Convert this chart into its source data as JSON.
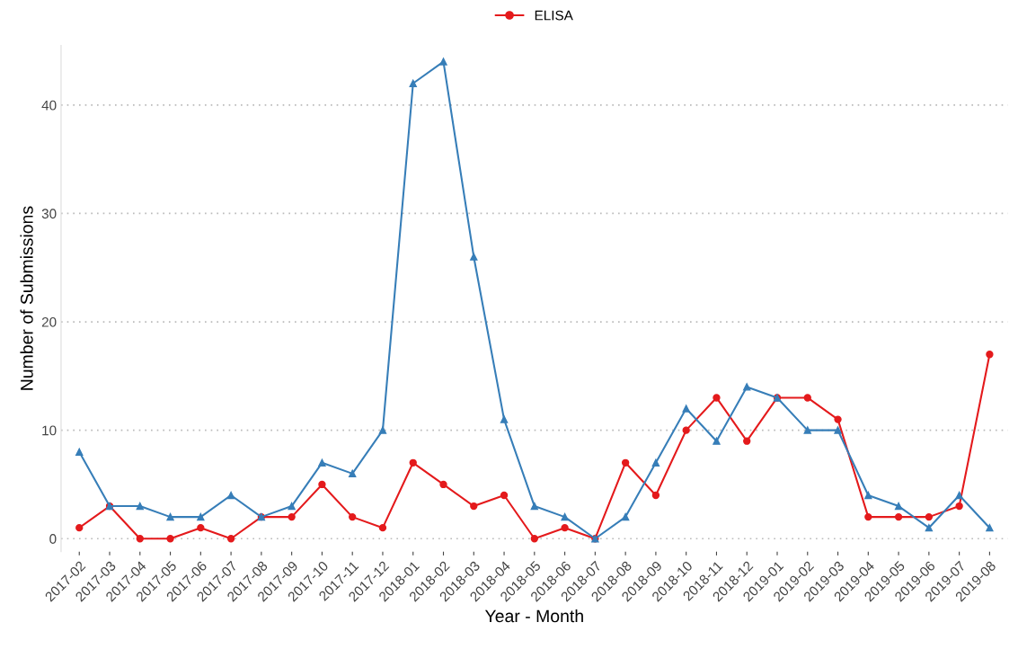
{
  "chart_data": {
    "type": "line",
    "xlabel": "Year - Month",
    "ylabel": "Number of Submissions",
    "categories": [
      "2017-02",
      "2017-03",
      "2017-04",
      "2017-05",
      "2017-06",
      "2017-07",
      "2017-08",
      "2017-09",
      "2017-10",
      "2017-11",
      "2017-12",
      "2018-01",
      "2018-02",
      "2018-03",
      "2018-04",
      "2018-05",
      "2018-06",
      "2018-07",
      "2018-08",
      "2018-09",
      "2018-10",
      "2018-11",
      "2018-12",
      "2019-01",
      "2019-02",
      "2019-03",
      "2019-04",
      "2019-05",
      "2019-06",
      "2019-07",
      "2019-08"
    ],
    "series": [
      {
        "name": "ELISA",
        "color": "#e41a1c",
        "marker": "circle",
        "values": [
          1,
          3,
          0,
          0,
          1,
          0,
          2,
          2,
          5,
          2,
          1,
          7,
          5,
          3,
          4,
          0,
          1,
          0,
          7,
          4,
          10,
          13,
          9,
          13,
          13,
          11,
          2,
          2,
          2,
          3,
          17
        ]
      },
      {
        "color": "#377eb8",
        "marker": "triangle",
        "values": [
          8,
          3,
          3,
          2,
          2,
          4,
          2,
          3,
          7,
          6,
          10,
          42,
          44,
          26,
          11,
          3,
          2,
          0,
          2,
          7,
          12,
          9,
          14,
          13,
          10,
          10,
          4,
          3,
          1,
          4,
          1
        ]
      }
    ],
    "ylim": [
      -1.2,
      45.5
    ],
    "yticks": [
      0,
      10,
      20,
      30,
      40
    ],
    "grid": "y",
    "legend": "top",
    "line_style": "solid"
  }
}
